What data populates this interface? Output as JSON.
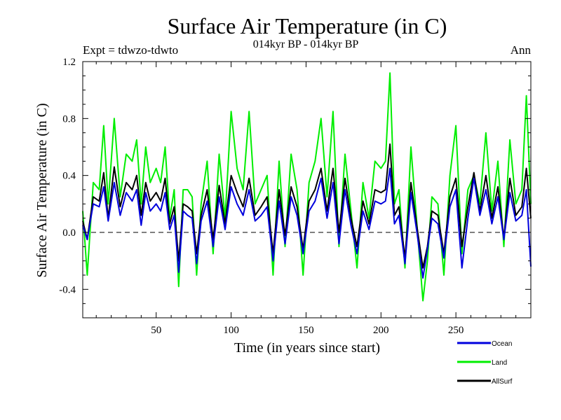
{
  "chart_data": {
    "type": "line",
    "title": "Surface Air Temperature (in C)",
    "subtitle": "014kyr BP - 014kyr BP",
    "expt_label": "Expt = tdwzo-tdwto",
    "season_label": "Ann",
    "xlabel": "Time (in years since start)",
    "ylabel": "Surface Air Temperature (in C)",
    "xlim": [
      1,
      300
    ],
    "ylim": [
      -0.6,
      1.2
    ],
    "x_ticks": [
      50,
      100,
      150,
      200,
      250
    ],
    "x_tick_labels": [
      "50",
      "100",
      "150",
      "200",
      "250"
    ],
    "y_ticks": [
      -0.4,
      0.0,
      0.4,
      0.8,
      1.2
    ],
    "y_tick_labels": [
      "-0.4",
      "0.0",
      "0.4",
      "0.8",
      "1.2"
    ],
    "zero_line": "dashed",
    "legend_position": "bottom-right",
    "series": [
      {
        "name": "Land",
        "color": "#00ee00",
        "x": [
          1,
          4,
          8,
          12,
          15,
          18,
          22,
          26,
          30,
          34,
          37,
          40,
          43,
          46,
          50,
          53,
          56,
          59,
          62,
          65,
          68,
          71,
          74,
          77,
          80,
          84,
          88,
          92,
          96,
          100,
          104,
          108,
          112,
          116,
          120,
          124,
          128,
          132,
          136,
          140,
          144,
          148,
          152,
          156,
          160,
          164,
          168,
          172,
          176,
          180,
          184,
          188,
          192,
          196,
          200,
          203,
          206,
          209,
          212,
          216,
          220,
          224,
          228,
          231,
          234,
          238,
          242,
          246,
          250,
          254,
          258,
          262,
          266,
          270,
          274,
          278,
          282,
          286,
          290,
          294,
          297,
          300
        ],
        "values": [
          0.15,
          -0.3,
          0.35,
          0.3,
          0.75,
          0.2,
          0.8,
          0.25,
          0.55,
          0.5,
          0.65,
          0.2,
          0.6,
          0.35,
          0.45,
          0.35,
          0.6,
          0.1,
          0.3,
          -0.38,
          0.3,
          0.3,
          0.25,
          -0.3,
          0.2,
          0.5,
          -0.15,
          0.55,
          0.1,
          0.85,
          0.45,
          0.3,
          0.85,
          0.2,
          0.3,
          0.4,
          -0.3,
          0.5,
          -0.1,
          0.55,
          0.3,
          -0.3,
          0.35,
          0.5,
          0.8,
          0.25,
          0.85,
          -0.1,
          0.55,
          0.15,
          -0.25,
          0.35,
          0.1,
          0.5,
          0.45,
          0.5,
          1.12,
          0.2,
          0.3,
          -0.25,
          0.6,
          0.05,
          -0.48,
          -0.2,
          0.25,
          0.2,
          -0.3,
          0.4,
          0.75,
          -0.15,
          0.3,
          0.4,
          0.2,
          0.7,
          0.15,
          0.5,
          -0.1,
          0.65,
          0.2,
          0.3,
          0.96,
          0.2
        ]
      },
      {
        "name": "AllSurf",
        "color": "#000000",
        "x": [
          1,
          4,
          8,
          12,
          15,
          18,
          22,
          26,
          30,
          34,
          37,
          40,
          43,
          46,
          50,
          53,
          56,
          59,
          62,
          65,
          68,
          71,
          74,
          77,
          80,
          84,
          88,
          92,
          96,
          100,
          104,
          108,
          112,
          116,
          120,
          124,
          128,
          132,
          136,
          140,
          144,
          148,
          152,
          156,
          160,
          164,
          168,
          172,
          176,
          180,
          184,
          188,
          192,
          196,
          200,
          203,
          206,
          209,
          212,
          216,
          220,
          224,
          228,
          231,
          234,
          238,
          242,
          246,
          250,
          254,
          258,
          262,
          266,
          270,
          274,
          278,
          282,
          286,
          290,
          294,
          297,
          300
        ],
        "values": [
          0.08,
          -0.05,
          0.25,
          0.22,
          0.42,
          0.1,
          0.46,
          0.18,
          0.35,
          0.3,
          0.4,
          0.12,
          0.35,
          0.22,
          0.28,
          0.22,
          0.38,
          0.06,
          0.18,
          -0.2,
          0.2,
          0.18,
          0.15,
          -0.15,
          0.12,
          0.3,
          -0.05,
          0.33,
          0.06,
          0.4,
          0.28,
          0.18,
          0.38,
          0.12,
          0.18,
          0.25,
          -0.15,
          0.3,
          -0.02,
          0.32,
          0.18,
          -0.12,
          0.22,
          0.3,
          0.45,
          0.15,
          0.45,
          0.0,
          0.38,
          0.1,
          -0.1,
          0.22,
          0.06,
          0.3,
          0.28,
          0.3,
          0.62,
          0.12,
          0.18,
          -0.18,
          0.35,
          0.04,
          -0.25,
          -0.1,
          0.15,
          0.12,
          -0.15,
          0.25,
          0.38,
          -0.1,
          0.18,
          0.42,
          0.15,
          0.4,
          0.1,
          0.32,
          -0.04,
          0.38,
          0.12,
          0.18,
          0.45,
          0.1
        ]
      },
      {
        "name": "Ocean",
        "color": "#0000dd",
        "x": [
          1,
          4,
          8,
          12,
          15,
          18,
          22,
          26,
          30,
          34,
          37,
          40,
          43,
          46,
          50,
          53,
          56,
          59,
          62,
          65,
          68,
          71,
          74,
          77,
          80,
          84,
          88,
          92,
          96,
          100,
          104,
          108,
          112,
          116,
          120,
          124,
          128,
          132,
          136,
          140,
          144,
          148,
          152,
          156,
          160,
          164,
          168,
          172,
          176,
          180,
          184,
          188,
          192,
          196,
          200,
          203,
          206,
          209,
          212,
          216,
          220,
          224,
          228,
          231,
          234,
          238,
          242,
          246,
          250,
          254,
          258,
          262,
          266,
          270,
          274,
          278,
          282,
          286,
          290,
          294,
          297,
          300
        ],
        "values": [
          0.05,
          -0.05,
          0.2,
          0.18,
          0.32,
          0.08,
          0.35,
          0.12,
          0.28,
          0.22,
          0.3,
          0.05,
          0.28,
          0.15,
          0.2,
          0.15,
          0.28,
          0.02,
          0.12,
          -0.28,
          0.15,
          0.12,
          0.1,
          -0.22,
          0.08,
          0.22,
          -0.1,
          0.25,
          0.02,
          0.32,
          0.2,
          0.12,
          0.3,
          0.08,
          0.12,
          0.18,
          -0.2,
          0.22,
          -0.08,
          0.25,
          0.12,
          -0.15,
          0.15,
          0.22,
          0.38,
          0.1,
          0.35,
          -0.08,
          0.3,
          0.05,
          -0.15,
          0.15,
          0.02,
          0.22,
          0.2,
          0.22,
          0.45,
          0.06,
          0.12,
          -0.22,
          0.28,
          0.0,
          -0.32,
          -0.12,
          0.1,
          0.06,
          -0.18,
          0.18,
          0.3,
          -0.25,
          0.1,
          0.38,
          0.12,
          0.3,
          0.06,
          0.25,
          -0.05,
          0.28,
          0.08,
          0.12,
          0.3,
          -0.24
        ]
      }
    ],
    "legend_items": [
      {
        "name": "Ocean",
        "color": "#0000dd"
      },
      {
        "name": "Land",
        "color": "#00ee00"
      },
      {
        "name": "AllSurf",
        "color": "#000000"
      }
    ]
  }
}
